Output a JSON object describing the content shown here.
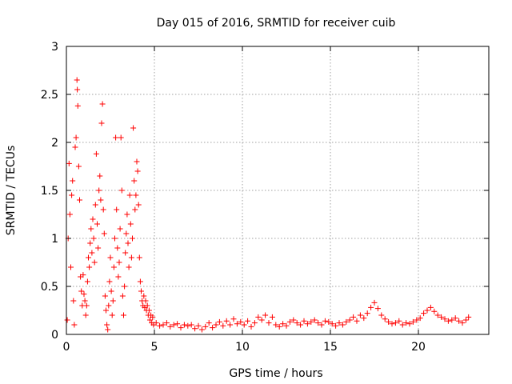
{
  "chart_data": {
    "type": "scatter",
    "title": "Day 015 of 2016, SRMTID for receiver cuib",
    "xlabel": "GPS time / hours",
    "ylabel": "SRMTID / TECUs",
    "xlim": [
      0,
      24
    ],
    "ylim": [
      0,
      3
    ],
    "xticks": [
      0,
      5,
      10,
      15,
      20
    ],
    "xtick_labels": [
      "0",
      "5",
      "10",
      "15",
      "20"
    ],
    "yticks": [
      0,
      0.5,
      1,
      1.5,
      2,
      2.5,
      3
    ],
    "ytick_labels": [
      "0",
      "0.5",
      "1",
      "1.5",
      "2",
      "2.5",
      "3"
    ],
    "grid": true,
    "marker": "plus",
    "color": "#ff0000",
    "series": [
      {
        "name": "SRMTID",
        "points": [
          [
            0.05,
            0.15
          ],
          [
            0.1,
            1.0
          ],
          [
            0.15,
            1.78
          ],
          [
            0.2,
            1.25
          ],
          [
            0.25,
            0.7
          ],
          [
            0.3,
            1.45
          ],
          [
            0.35,
            1.6
          ],
          [
            0.4,
            0.35
          ],
          [
            0.45,
            0.1
          ],
          [
            0.5,
            1.95
          ],
          [
            0.55,
            2.05
          ],
          [
            0.6,
            2.65
          ],
          [
            0.62,
            2.55
          ],
          [
            0.65,
            2.38
          ],
          [
            0.7,
            1.75
          ],
          [
            0.75,
            1.4
          ],
          [
            0.8,
            0.6
          ],
          [
            0.85,
            0.45
          ],
          [
            0.9,
            0.3
          ],
          [
            0.95,
            0.62
          ],
          [
            1.0,
            0.42
          ],
          [
            1.05,
            0.35
          ],
          [
            1.1,
            0.2
          ],
          [
            1.15,
            0.3
          ],
          [
            1.2,
            0.55
          ],
          [
            1.25,
            0.8
          ],
          [
            1.3,
            0.7
          ],
          [
            1.35,
            0.95
          ],
          [
            1.4,
            1.1
          ],
          [
            1.45,
            0.85
          ],
          [
            1.5,
            1.2
          ],
          [
            1.55,
            1.0
          ],
          [
            1.6,
            0.75
          ],
          [
            1.65,
            1.35
          ],
          [
            1.7,
            1.88
          ],
          [
            1.75,
            1.15
          ],
          [
            1.8,
            0.9
          ],
          [
            1.85,
            1.5
          ],
          [
            1.9,
            1.65
          ],
          [
            1.95,
            1.4
          ],
          [
            2.0,
            2.2
          ],
          [
            2.05,
            2.4
          ],
          [
            2.1,
            1.3
          ],
          [
            2.15,
            1.05
          ],
          [
            2.2,
            0.4
          ],
          [
            2.25,
            0.25
          ],
          [
            2.3,
            0.1
          ],
          [
            2.35,
            0.05
          ],
          [
            2.4,
            0.3
          ],
          [
            2.45,
            0.55
          ],
          [
            2.5,
            0.8
          ],
          [
            2.55,
            0.45
          ],
          [
            2.6,
            0.2
          ],
          [
            2.65,
            0.35
          ],
          [
            2.7,
            0.7
          ],
          [
            2.75,
            1.0
          ],
          [
            2.8,
            2.05
          ],
          [
            2.85,
            1.3
          ],
          [
            2.9,
            0.9
          ],
          [
            2.95,
            0.6
          ],
          [
            3.0,
            0.75
          ],
          [
            3.05,
            1.1
          ],
          [
            3.1,
            2.05
          ],
          [
            3.15,
            1.5
          ],
          [
            3.2,
            0.4
          ],
          [
            3.25,
            0.2
          ],
          [
            3.3,
            0.5
          ],
          [
            3.35,
            0.85
          ],
          [
            3.4,
            1.05
          ],
          [
            3.45,
            1.25
          ],
          [
            3.5,
            0.95
          ],
          [
            3.55,
            0.7
          ],
          [
            3.6,
            1.45
          ],
          [
            3.65,
            1.15
          ],
          [
            3.7,
            0.8
          ],
          [
            3.75,
            1.0
          ],
          [
            3.8,
            2.15
          ],
          [
            3.85,
            1.6
          ],
          [
            3.9,
            1.3
          ],
          [
            3.95,
            1.45
          ],
          [
            4.0,
            1.8
          ],
          [
            4.05,
            1.7
          ],
          [
            4.1,
            1.35
          ],
          [
            4.15,
            0.8
          ],
          [
            4.2,
            0.55
          ],
          [
            4.25,
            0.45
          ],
          [
            4.3,
            0.35
          ],
          [
            4.35,
            0.3
          ],
          [
            4.4,
            0.4
          ],
          [
            4.45,
            0.28
          ],
          [
            4.5,
            0.35
          ],
          [
            4.55,
            0.25
          ],
          [
            4.6,
            0.3
          ],
          [
            4.65,
            0.2
          ],
          [
            4.7,
            0.25
          ],
          [
            4.75,
            0.15
          ],
          [
            4.8,
            0.2
          ],
          [
            4.85,
            0.12
          ],
          [
            4.9,
            0.18
          ],
          [
            4.95,
            0.1
          ],
          [
            5.1,
            0.12
          ],
          [
            5.3,
            0.09
          ],
          [
            5.5,
            0.1
          ],
          [
            5.7,
            0.12
          ],
          [
            5.9,
            0.08
          ],
          [
            6.1,
            0.1
          ],
          [
            6.3,
            0.11
          ],
          [
            6.5,
            0.07
          ],
          [
            6.7,
            0.1
          ],
          [
            6.9,
            0.09
          ],
          [
            7.1,
            0.1
          ],
          [
            7.3,
            0.06
          ],
          [
            7.5,
            0.09
          ],
          [
            7.7,
            0.05
          ],
          [
            7.9,
            0.08
          ],
          [
            8.1,
            0.12
          ],
          [
            8.3,
            0.07
          ],
          [
            8.5,
            0.1
          ],
          [
            8.7,
            0.13
          ],
          [
            8.9,
            0.09
          ],
          [
            9.1,
            0.14
          ],
          [
            9.3,
            0.1
          ],
          [
            9.5,
            0.16
          ],
          [
            9.7,
            0.11
          ],
          [
            9.9,
            0.13
          ],
          [
            10.1,
            0.1
          ],
          [
            10.3,
            0.14
          ],
          [
            10.5,
            0.08
          ],
          [
            10.7,
            0.12
          ],
          [
            10.9,
            0.18
          ],
          [
            11.1,
            0.15
          ],
          [
            11.3,
            0.2
          ],
          [
            11.5,
            0.12
          ],
          [
            11.7,
            0.18
          ],
          [
            11.9,
            0.1
          ],
          [
            12.1,
            0.08
          ],
          [
            12.3,
            0.11
          ],
          [
            12.5,
            0.09
          ],
          [
            12.7,
            0.13
          ],
          [
            12.9,
            0.15
          ],
          [
            13.1,
            0.12
          ],
          [
            13.3,
            0.1
          ],
          [
            13.5,
            0.14
          ],
          [
            13.7,
            0.11
          ],
          [
            13.9,
            0.13
          ],
          [
            14.1,
            0.15
          ],
          [
            14.3,
            0.12
          ],
          [
            14.5,
            0.1
          ],
          [
            14.7,
            0.14
          ],
          [
            14.9,
            0.13
          ],
          [
            15.1,
            0.11
          ],
          [
            15.3,
            0.09
          ],
          [
            15.5,
            0.12
          ],
          [
            15.7,
            0.1
          ],
          [
            15.9,
            0.13
          ],
          [
            16.1,
            0.15
          ],
          [
            16.3,
            0.18
          ],
          [
            16.5,
            0.14
          ],
          [
            16.7,
            0.2
          ],
          [
            16.9,
            0.17
          ],
          [
            17.1,
            0.22
          ],
          [
            17.3,
            0.28
          ],
          [
            17.5,
            0.33
          ],
          [
            17.7,
            0.27
          ],
          [
            17.9,
            0.2
          ],
          [
            18.1,
            0.16
          ],
          [
            18.3,
            0.13
          ],
          [
            18.5,
            0.11
          ],
          [
            18.7,
            0.12
          ],
          [
            18.9,
            0.14
          ],
          [
            19.1,
            0.1
          ],
          [
            19.3,
            0.12
          ],
          [
            19.5,
            0.11
          ],
          [
            19.7,
            0.13
          ],
          [
            19.9,
            0.15
          ],
          [
            20.1,
            0.17
          ],
          [
            20.3,
            0.22
          ],
          [
            20.5,
            0.25
          ],
          [
            20.7,
            0.28
          ],
          [
            20.9,
            0.24
          ],
          [
            21.1,
            0.2
          ],
          [
            21.3,
            0.18
          ],
          [
            21.5,
            0.16
          ],
          [
            21.7,
            0.14
          ],
          [
            21.9,
            0.15
          ],
          [
            22.1,
            0.17
          ],
          [
            22.3,
            0.14
          ],
          [
            22.5,
            0.12
          ],
          [
            22.7,
            0.15
          ],
          [
            22.85,
            0.18
          ]
        ]
      }
    ]
  }
}
